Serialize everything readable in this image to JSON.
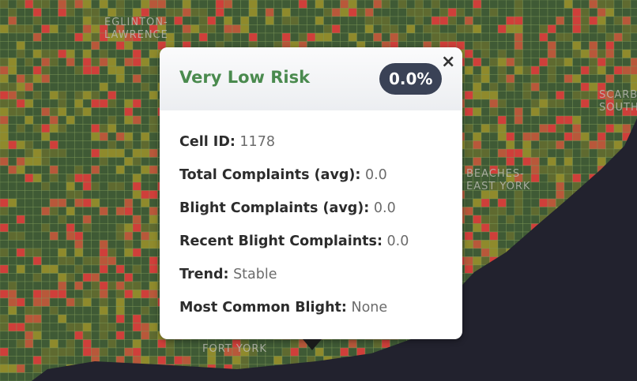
{
  "map_labels": [
    {
      "lines": [
        "EGLINTON-",
        "LAWRENCE"
      ]
    },
    {
      "lines": [
        "SCARBOROUGH",
        "SOUTHWEST"
      ]
    },
    {
      "lines": [
        "BEACHES-",
        "EAST YORK"
      ]
    },
    {
      "lines": [
        "FORT YORK"
      ]
    }
  ],
  "popup": {
    "title": "Very Low Risk",
    "badge": "0.0%",
    "close": "×",
    "fields": [
      {
        "label": "Cell ID:",
        "value": "1178"
      },
      {
        "label": "Total Complaints (avg):",
        "value": "0.0"
      },
      {
        "label": "Blight Complaints (avg):",
        "value": "0.0"
      },
      {
        "label": "Recent Blight Complaints:",
        "value": "0.0"
      },
      {
        "label": "Trend:",
        "value": "Stable"
      },
      {
        "label": "Most Common Blight:",
        "value": "None"
      }
    ]
  }
}
